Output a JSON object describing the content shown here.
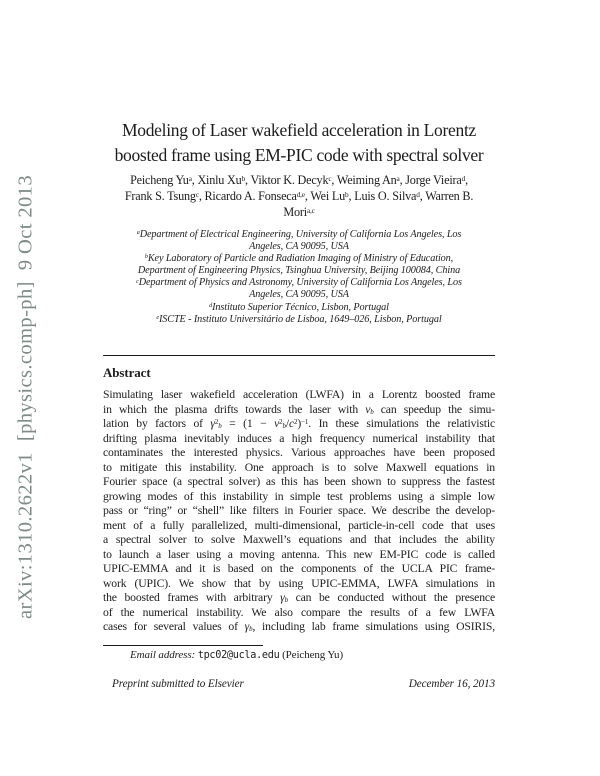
{
  "arxiv_stamp": {
    "text": "arXiv:1310.2622v1  [physics.comp-ph]  9 Oct 2013",
    "color": "#7c8b85"
  },
  "title": {
    "lines": [
      "Modeling of Laser wakefield acceleration in Lorentz",
      "boosted frame using EM-PIC code with spectral solver"
    ]
  },
  "authors": {
    "lines": [
      "Peicheng Yu<sup>a</sup>, Xinlu Xu<sup>b</sup>, Viktor K. Decyk<sup>c</sup>, Weiming An<sup>a</sup>, Jorge Vieira<sup>d</sup>,",
      "Frank S. Tsung<sup>c</sup>, Ricardo A. Fonseca<sup>d,e</sup>, Wei Lu<sup>b</sup>, Luis O. Silva<sup>d</sup>, Warren B.",
      "Mori<sup>a,c</sup>"
    ]
  },
  "affiliations": {
    "lines": [
      "<sup>a</sup>Department of Electrical Engineering, University of California Los Angeles, Los",
      "Angeles, CA 90095, USA",
      "<sup>b</sup>Key Laboratory of Particle and Radiation Imaging of Ministry of Education,",
      "Department of Engineering Physics, Tsinghua University, Beijing 100084, China",
      "<sup>c</sup>Department of Physics and Astronomy, University of California Los Angeles, Los",
      "Angeles, CA 90095, USA",
      "<sup>d</sup>Instituto Superior Técnico, Lisbon, Portugal",
      "<sup>e</sup>ISCTE - Instituto Universitário de Lisboa, 1649–026, Lisbon, Portugal"
    ]
  },
  "abstract": {
    "heading": "Abstract",
    "lines": [
      "Simulating laser wakefield acceleration (LWFA) in a Lorentz boosted frame",
      "in which the plasma drifts towards the laser with <i>v</i><sub><i>b</i></sub> can speedup the simu-",
      "lation by factors of <i>γ</i><sup>2</sup><sub><i>b</i></sub> = (1 − <i>v</i><sup>2</sup><sub><i>b</i></sub>/<i>c</i><sup>2</sup>)<sup>−1</sup>. In these simulations the relativistic",
      "drifting plasma inevitably induces a high frequency numerical instability that",
      "contaminates the interested physics. Various approaches have been proposed",
      "to mitigate this instability. One approach is to solve Maxwell equations in",
      "Fourier space (a spectral solver) as this has been shown to suppress the fastest",
      "growing modes of this instability in simple test problems using a simple low",
      "pass or “ring” or “shell” like filters in Fourier space. We describe the develop-",
      "ment of a fully parallelized, multi-dimensional, particle-in-cell code that uses",
      "a spectral solver to solve Maxwell’s equations and that includes the ability",
      "to launch a laser using a moving antenna. This new EM-PIC code is called",
      "UPIC-EMMA and it is based on the components of the UCLA PIC frame-",
      "work (UPIC). We show that by using UPIC-EMMA, LWFA simulations in",
      "the boosted frames with arbitrary <i>γ</i><sub><i>b</i></sub> can be conducted without the presence",
      "of the numerical instability. We also compare the results of a few LWFA",
      "cases for several values of <i>γ</i><sub><i>b</i></sub>, including lab frame simulations using OSIRIS,"
    ]
  },
  "footnote": {
    "label": "Email address:",
    "email": "tpc02@ucla.edu",
    "suffix": "(Peicheng Yu)"
  },
  "footer": {
    "left": "Preprint submitted to Elsevier",
    "right": "December 16, 2013"
  }
}
